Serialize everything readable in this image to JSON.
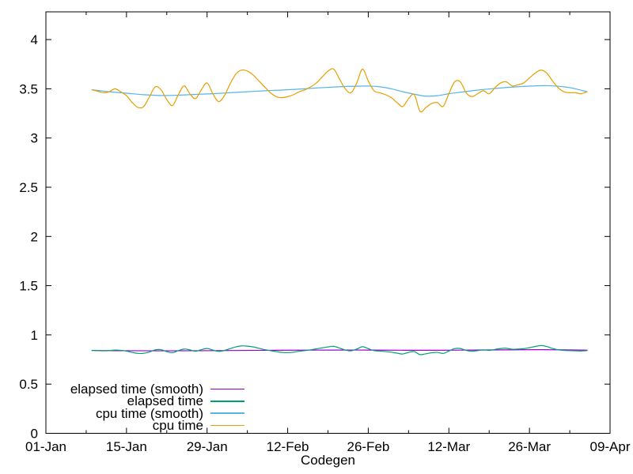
{
  "chart_data": {
    "type": "line",
    "title": "",
    "xlabel": "Codegen",
    "ylabel": "",
    "grid": false,
    "legend_position": "bottom-left-inside",
    "x_axis": {
      "unit": "date",
      "range_days": [
        0,
        98
      ],
      "major_ticks": [
        {
          "day": 0,
          "label": "01-Jan"
        },
        {
          "day": 14,
          "label": "15-Jan"
        },
        {
          "day": 28,
          "label": "29-Jan"
        },
        {
          "day": 42,
          "label": "12-Feb"
        },
        {
          "day": 56,
          "label": "26-Feb"
        },
        {
          "day": 70,
          "label": "12-Mar"
        },
        {
          "day": 84,
          "label": "26-Mar"
        },
        {
          "day": 98,
          "label": "09-Apr"
        }
      ],
      "minor_tick_interval_days": 7
    },
    "y_axis": {
      "range": [
        0,
        4.28
      ],
      "tick_values": [
        0,
        0.5,
        1,
        1.5,
        2,
        2.5,
        3,
        3.5,
        4
      ],
      "tick_labels": [
        "0",
        "0.5",
        "1",
        "1.5",
        "2",
        "2.5",
        "3",
        "3.5",
        "4"
      ]
    },
    "series": [
      {
        "name": "elapsed time (smooth)",
        "color": "#9400d3",
        "points": [
          [
            8,
            0.842
          ],
          [
            14,
            0.839
          ],
          [
            20,
            0.838
          ],
          [
            26,
            0.839
          ],
          [
            32,
            0.841
          ],
          [
            38,
            0.843
          ],
          [
            44,
            0.845
          ],
          [
            50,
            0.846
          ],
          [
            56,
            0.846
          ],
          [
            62,
            0.844
          ],
          [
            68,
            0.844
          ],
          [
            74,
            0.846
          ],
          [
            80,
            0.848
          ],
          [
            86,
            0.85
          ],
          [
            90,
            0.848
          ],
          [
            94,
            0.845
          ]
        ]
      },
      {
        "name": "elapsed time",
        "color": "#009e73",
        "points": [
          [
            8,
            0.842
          ],
          [
            9,
            0.84
          ],
          [
            10,
            0.838
          ],
          [
            11,
            0.84
          ],
          [
            12,
            0.846
          ],
          [
            13,
            0.843
          ],
          [
            14,
            0.835
          ],
          [
            15,
            0.822
          ],
          [
            16,
            0.812
          ],
          [
            17,
            0.813
          ],
          [
            18,
            0.826
          ],
          [
            19,
            0.848
          ],
          [
            20,
            0.85
          ],
          [
            21,
            0.83
          ],
          [
            22,
            0.82
          ],
          [
            23,
            0.84
          ],
          [
            24,
            0.856
          ],
          [
            25,
            0.848
          ],
          [
            26,
            0.834
          ],
          [
            27,
            0.85
          ],
          [
            28,
            0.862
          ],
          [
            29,
            0.846
          ],
          [
            30,
            0.832
          ],
          [
            31,
            0.842
          ],
          [
            32,
            0.86
          ],
          [
            33,
            0.878
          ],
          [
            34,
            0.888
          ],
          [
            35,
            0.886
          ],
          [
            36,
            0.878
          ],
          [
            37,
            0.864
          ],
          [
            38,
            0.85
          ],
          [
            39,
            0.84
          ],
          [
            40,
            0.83
          ],
          [
            41,
            0.822
          ],
          [
            42,
            0.82
          ],
          [
            43,
            0.824
          ],
          [
            44,
            0.834
          ],
          [
            45,
            0.84
          ],
          [
            46,
            0.848
          ],
          [
            47,
            0.858
          ],
          [
            48,
            0.868
          ],
          [
            49,
            0.878
          ],
          [
            50,
            0.884
          ],
          [
            51,
            0.866
          ],
          [
            52,
            0.846
          ],
          [
            53,
            0.838
          ],
          [
            54,
            0.856
          ],
          [
            55,
            0.88
          ],
          [
            56,
            0.86
          ],
          [
            57,
            0.84
          ],
          [
            58,
            0.836
          ],
          [
            59,
            0.83
          ],
          [
            60,
            0.824
          ],
          [
            61,
            0.814
          ],
          [
            62,
            0.806
          ],
          [
            63,
            0.822
          ],
          [
            64,
            0.83
          ],
          [
            65,
            0.8
          ],
          [
            66,
            0.808
          ],
          [
            67,
            0.818
          ],
          [
            68,
            0.822
          ],
          [
            69,
            0.812
          ],
          [
            70,
            0.836
          ],
          [
            71,
            0.86
          ],
          [
            72,
            0.862
          ],
          [
            73,
            0.842
          ],
          [
            74,
            0.834
          ],
          [
            75,
            0.84
          ],
          [
            76,
            0.848
          ],
          [
            77,
            0.842
          ],
          [
            78,
            0.852
          ],
          [
            79,
            0.862
          ],
          [
            80,
            0.864
          ],
          [
            81,
            0.854
          ],
          [
            82,
            0.856
          ],
          [
            83,
            0.86
          ],
          [
            84,
            0.87
          ],
          [
            85,
            0.882
          ],
          [
            86,
            0.892
          ],
          [
            87,
            0.882
          ],
          [
            88,
            0.862
          ],
          [
            89,
            0.848
          ],
          [
            90,
            0.842
          ],
          [
            91,
            0.84
          ],
          [
            92,
            0.838
          ],
          [
            93,
            0.836
          ],
          [
            94,
            0.84
          ]
        ]
      },
      {
        "name": "cpu time (smooth)",
        "color": "#56b4e9",
        "points": [
          [
            8,
            3.49
          ],
          [
            11,
            3.47
          ],
          [
            14,
            3.455
          ],
          [
            17,
            3.44
          ],
          [
            20,
            3.432
          ],
          [
            23,
            3.435
          ],
          [
            26,
            3.443
          ],
          [
            29,
            3.45
          ],
          [
            32,
            3.46
          ],
          [
            35,
            3.47
          ],
          [
            38,
            3.48
          ],
          [
            41,
            3.487
          ],
          [
            44,
            3.497
          ],
          [
            47,
            3.508
          ],
          [
            50,
            3.518
          ],
          [
            53,
            3.525
          ],
          [
            56,
            3.528
          ],
          [
            58,
            3.52
          ],
          [
            60,
            3.5
          ],
          [
            62,
            3.47
          ],
          [
            64,
            3.445
          ],
          [
            66,
            3.425
          ],
          [
            68,
            3.43
          ],
          [
            70,
            3.45
          ],
          [
            72,
            3.465
          ],
          [
            75,
            3.487
          ],
          [
            78,
            3.503
          ],
          [
            81,
            3.517
          ],
          [
            84,
            3.527
          ],
          [
            87,
            3.532
          ],
          [
            90,
            3.52
          ],
          [
            92,
            3.5
          ],
          [
            94,
            3.47
          ]
        ]
      },
      {
        "name": "cpu time",
        "color": "#e69f00",
        "points": [
          [
            8,
            3.49
          ],
          [
            9,
            3.475
          ],
          [
            10,
            3.46
          ],
          [
            11,
            3.47
          ],
          [
            12,
            3.5
          ],
          [
            13,
            3.47
          ],
          [
            14,
            3.43
          ],
          [
            15,
            3.36
          ],
          [
            16,
            3.31
          ],
          [
            17,
            3.32
          ],
          [
            18,
            3.42
          ],
          [
            19,
            3.52
          ],
          [
            20,
            3.49
          ],
          [
            21,
            3.39
          ],
          [
            22,
            3.33
          ],
          [
            23,
            3.44
          ],
          [
            24,
            3.53
          ],
          [
            25,
            3.45
          ],
          [
            26,
            3.4
          ],
          [
            27,
            3.49
          ],
          [
            28,
            3.56
          ],
          [
            29,
            3.45
          ],
          [
            30,
            3.37
          ],
          [
            31,
            3.43
          ],
          [
            32,
            3.55
          ],
          [
            33,
            3.65
          ],
          [
            34,
            3.69
          ],
          [
            35,
            3.68
          ],
          [
            36,
            3.64
          ],
          [
            37,
            3.58
          ],
          [
            38,
            3.52
          ],
          [
            39,
            3.46
          ],
          [
            40,
            3.42
          ],
          [
            41,
            3.41
          ],
          [
            42,
            3.42
          ],
          [
            43,
            3.44
          ],
          [
            44,
            3.47
          ],
          [
            45,
            3.49
          ],
          [
            46,
            3.52
          ],
          [
            47,
            3.56
          ],
          [
            48,
            3.62
          ],
          [
            49,
            3.68
          ],
          [
            50,
            3.7
          ],
          [
            51,
            3.6
          ],
          [
            52,
            3.5
          ],
          [
            53,
            3.46
          ],
          [
            54,
            3.56
          ],
          [
            55,
            3.7
          ],
          [
            56,
            3.58
          ],
          [
            57,
            3.48
          ],
          [
            58,
            3.46
          ],
          [
            59,
            3.44
          ],
          [
            60,
            3.41
          ],
          [
            61,
            3.36
          ],
          [
            62,
            3.32
          ],
          [
            63,
            3.4
          ],
          [
            64,
            3.44
          ],
          [
            65,
            3.27
          ],
          [
            66,
            3.31
          ],
          [
            67,
            3.35
          ],
          [
            68,
            3.36
          ],
          [
            69,
            3.32
          ],
          [
            70,
            3.45
          ],
          [
            71,
            3.57
          ],
          [
            72,
            3.57
          ],
          [
            73,
            3.46
          ],
          [
            74,
            3.42
          ],
          [
            75,
            3.45
          ],
          [
            76,
            3.48
          ],
          [
            77,
            3.45
          ],
          [
            78,
            3.51
          ],
          [
            79,
            3.56
          ],
          [
            80,
            3.57
          ],
          [
            81,
            3.53
          ],
          [
            82,
            3.54
          ],
          [
            83,
            3.56
          ],
          [
            84,
            3.61
          ],
          [
            85,
            3.66
          ],
          [
            86,
            3.69
          ],
          [
            87,
            3.66
          ],
          [
            88,
            3.58
          ],
          [
            89,
            3.51
          ],
          [
            90,
            3.47
          ],
          [
            91,
            3.46
          ],
          [
            92,
            3.46
          ],
          [
            93,
            3.45
          ],
          [
            94,
            3.47
          ]
        ]
      }
    ],
    "colors": {
      "axis": "#000000",
      "text": "#000000",
      "background": "#ffffff"
    }
  }
}
